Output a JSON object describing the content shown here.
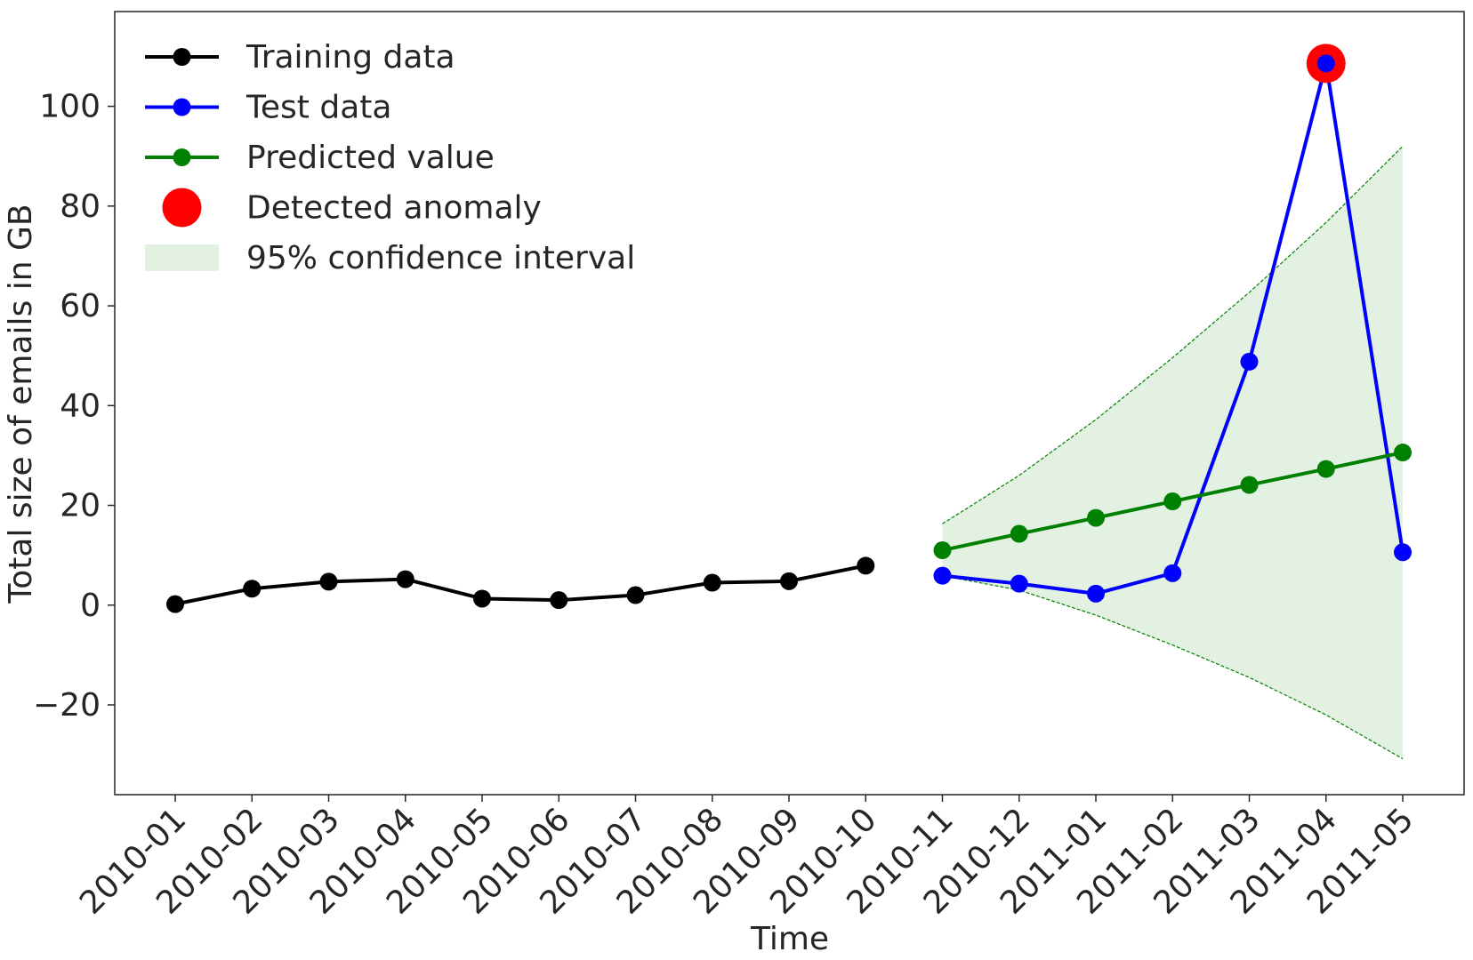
{
  "chart_data": {
    "type": "line",
    "title": "",
    "xlabel": "Time",
    "ylabel": "Total size of emails in GB",
    "ylim": [
      -38,
      119
    ],
    "yticks": [
      -20,
      0,
      20,
      40,
      60,
      80,
      100
    ],
    "ytick_labels": [
      "−20",
      "0",
      "20",
      "40",
      "60",
      "80",
      "100"
    ],
    "categories": [
      "2010-01",
      "2010-02",
      "2010-03",
      "2010-04",
      "2010-05",
      "2010-06",
      "2010-07",
      "2010-08",
      "2010-09",
      "2010-10",
      "2010-11",
      "2010-12",
      "2011-01",
      "2011-02",
      "2011-03",
      "2011-04",
      "2011-05"
    ],
    "grid": false,
    "legend_position": "top-left",
    "series": [
      {
        "name": "Training data",
        "color": "#000000",
        "x": [
          "2010-01",
          "2010-02",
          "2010-03",
          "2010-04",
          "2010-05",
          "2010-06",
          "2010-07",
          "2010-08",
          "2010-09",
          "2010-10"
        ],
        "values": [
          0.2,
          3.3,
          4.7,
          5.2,
          1.3,
          1.0,
          2.0,
          4.5,
          4.8,
          7.9
        ]
      },
      {
        "name": "Test data",
        "color": "#0000ff",
        "x": [
          "2010-11",
          "2010-12",
          "2011-01",
          "2011-02",
          "2011-03",
          "2011-04",
          "2011-05"
        ],
        "values": [
          5.9,
          4.3,
          2.3,
          6.4,
          48.8,
          108.6,
          10.6
        ]
      },
      {
        "name": "Predicted value",
        "color": "#008000",
        "x": [
          "2010-11",
          "2010-12",
          "2011-01",
          "2011-02",
          "2011-03",
          "2011-04",
          "2011-05"
        ],
        "values": [
          11.0,
          14.3,
          17.5,
          20.8,
          24.1,
          27.3,
          30.6
        ]
      }
    ],
    "anomalies": {
      "name": "Detected anomaly",
      "color": "#ff0000",
      "x": [
        "2011-04"
      ],
      "values": [
        108.6
      ]
    },
    "confidence_interval": {
      "name": "95% confidence interval",
      "fill_color": "#e3f1e3",
      "edge_color": "#008000",
      "x": [
        "2010-11",
        "2010-12",
        "2011-01",
        "2011-02",
        "2011-03",
        "2011-04",
        "2011-05"
      ],
      "lower": [
        5.9,
        3.0,
        -2.0,
        -8.0,
        -14.5,
        -22.0,
        -30.8
      ],
      "upper": [
        16.3,
        26.0,
        37.2,
        49.6,
        62.7,
        76.7,
        92.0
      ]
    }
  }
}
